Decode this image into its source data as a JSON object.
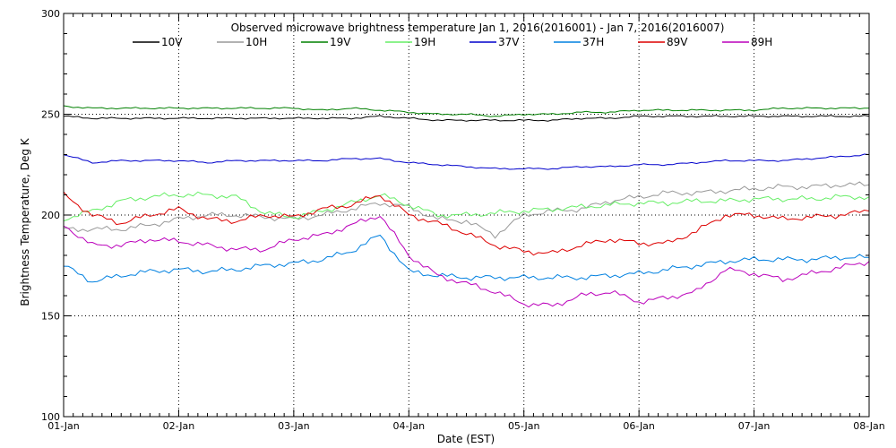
{
  "chart_data": {
    "type": "line",
    "title": "Observed microwave brightness temperature Jan  1, 2016(2016001) - Jan  7, 2016(2016007)",
    "xlabel": "Date (EST)",
    "ylabel": "Brightness Temperature, Deg K",
    "xlim": [
      "01-Jan",
      "08-Jan"
    ],
    "ylim": [
      100,
      300
    ],
    "x_ticks": [
      "01-Jan",
      "02-Jan",
      "03-Jan",
      "04-Jan",
      "05-Jan",
      "06-Jan",
      "07-Jan",
      "08-Jan"
    ],
    "y_ticks": [
      100,
      150,
      200,
      250,
      300
    ],
    "grid": "dotted",
    "legend_position": "top",
    "x_days": [
      0.0,
      0.25,
      0.5,
      0.75,
      1.0,
      1.25,
      1.5,
      1.75,
      2.0,
      2.25,
      2.5,
      2.75,
      3.0,
      3.25,
      3.5,
      3.75,
      4.0,
      4.25,
      4.5,
      4.75,
      5.0,
      5.25,
      5.5,
      5.75,
      6.0,
      6.25,
      6.5,
      6.75,
      7.0
    ],
    "series": [
      {
        "name": "10V",
        "color": "#000000",
        "values": [
          249,
          248,
          248,
          248,
          248,
          248,
          248,
          248,
          248,
          248,
          248,
          249,
          248,
          247,
          247,
          247,
          247,
          247,
          248,
          248,
          249,
          249,
          249,
          249,
          249,
          249,
          249,
          249,
          249
        ]
      },
      {
        "name": "10H",
        "color": "#999999",
        "values": [
          193,
          193,
          193,
          195,
          198,
          200,
          200,
          199,
          198,
          200,
          203,
          206,
          204,
          198,
          197,
          190,
          200,
          202,
          203,
          207,
          209,
          211,
          211,
          212,
          213,
          214,
          214,
          215,
          215
        ]
      },
      {
        "name": "19V",
        "color": "#008000",
        "values": [
          254,
          253,
          253,
          253,
          253,
          253,
          253,
          253,
          253,
          252,
          253,
          252,
          251,
          250,
          250,
          249,
          250,
          250,
          251,
          251,
          252,
          252,
          252,
          252,
          252,
          253,
          253,
          253,
          253
        ]
      },
      {
        "name": "19H",
        "color": "#66ee66",
        "values": [
          198,
          202,
          207,
          209,
          210,
          210,
          209,
          201,
          199,
          202,
          206,
          210,
          205,
          200,
          200,
          201,
          202,
          203,
          204,
          205,
          206,
          206,
          207,
          207,
          208,
          208,
          208,
          209,
          209
        ]
      },
      {
        "name": "37V",
        "color": "#0000cc",
        "values": [
          230,
          226,
          227,
          227,
          227,
          226,
          227,
          227,
          227,
          227,
          228,
          228,
          226,
          225,
          224,
          223,
          223,
          223,
          224,
          224,
          225,
          225,
          226,
          227,
          227,
          227,
          228,
          229,
          230
        ]
      },
      {
        "name": "37H",
        "color": "#0080e0",
        "values": [
          175,
          167,
          170,
          172,
          173,
          172,
          173,
          175,
          176,
          178,
          182,
          190,
          172,
          170,
          169,
          169,
          169,
          169,
          169,
          170,
          171,
          173,
          175,
          177,
          178,
          178,
          178,
          179,
          179
        ]
      },
      {
        "name": "89V",
        "color": "#dd0000",
        "values": [
          210,
          200,
          196,
          200,
          203,
          198,
          197,
          200,
          199,
          203,
          205,
          210,
          200,
          196,
          191,
          185,
          182,
          181,
          185,
          188,
          186,
          186,
          192,
          200,
          200,
          198,
          199,
          200,
          202
        ]
      },
      {
        "name": "89H",
        "color": "#bb00bb",
        "values": [
          195,
          185,
          185,
          188,
          187,
          185,
          183,
          183,
          188,
          190,
          195,
          200,
          180,
          170,
          166,
          162,
          156,
          155,
          160,
          162,
          157,
          159,
          162,
          173,
          171,
          168,
          171,
          174,
          177
        ]
      }
    ]
  }
}
